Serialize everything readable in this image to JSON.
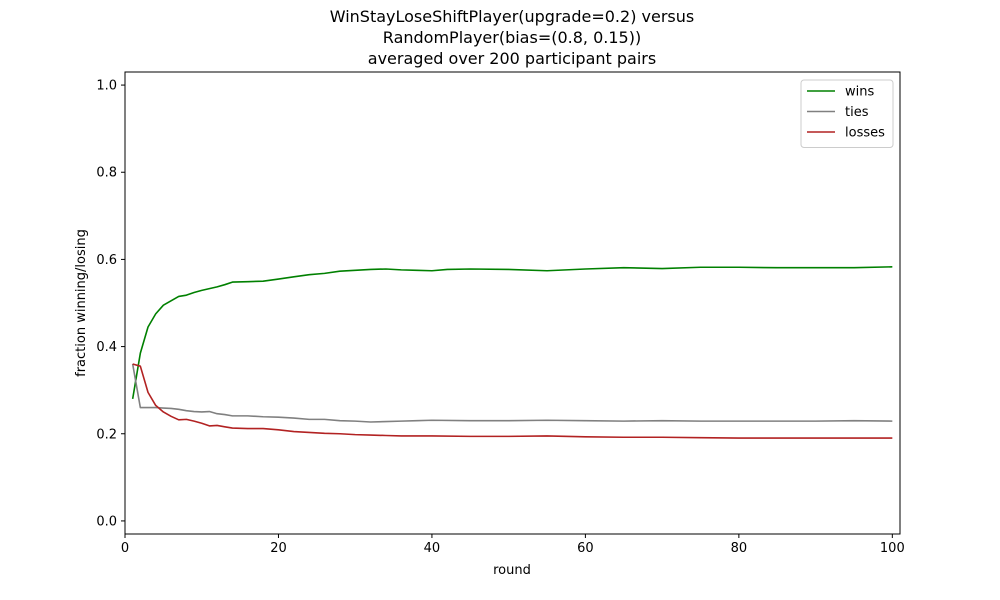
{
  "chart_data": {
    "type": "line",
    "title_lines": [
      "WinStayLoseShiftPlayer(upgrade=0.2) versus",
      "RandomPlayer(bias=(0.8, 0.15))",
      "averaged over 200 participant pairs"
    ],
    "xlabel": "round",
    "ylabel": "fraction winning/losing",
    "xlim": [
      0,
      101
    ],
    "ylim": [
      -0.03,
      1.03
    ],
    "xticks": [
      0,
      20,
      40,
      60,
      80,
      100
    ],
    "yticks": [
      0.0,
      0.2,
      0.4,
      0.6,
      0.8,
      1.0
    ],
    "xtick_labels": [
      "0",
      "20",
      "40",
      "60",
      "80",
      "100"
    ],
    "ytick_labels": [
      "0.0",
      "0.2",
      "0.4",
      "0.6",
      "0.8",
      "1.0"
    ],
    "grid": false,
    "legend_position": "top-right",
    "series": [
      {
        "name": "wins",
        "color": "#008000",
        "points": [
          [
            1,
            0.28
          ],
          [
            2,
            0.385
          ],
          [
            3,
            0.445
          ],
          [
            4,
            0.475
          ],
          [
            5,
            0.495
          ],
          [
            6,
            0.505
          ],
          [
            7,
            0.515
          ],
          [
            8,
            0.518
          ],
          [
            9,
            0.524
          ],
          [
            10,
            0.529
          ],
          [
            12,
            0.537
          ],
          [
            13,
            0.542
          ],
          [
            14,
            0.548
          ],
          [
            16,
            0.549
          ],
          [
            18,
            0.55
          ],
          [
            20,
            0.555
          ],
          [
            22,
            0.56
          ],
          [
            24,
            0.565
          ],
          [
            26,
            0.568
          ],
          [
            28,
            0.573
          ],
          [
            30,
            0.575
          ],
          [
            32,
            0.577
          ],
          [
            34,
            0.578
          ],
          [
            36,
            0.576
          ],
          [
            38,
            0.575
          ],
          [
            40,
            0.574
          ],
          [
            42,
            0.577
          ],
          [
            45,
            0.578
          ],
          [
            50,
            0.577
          ],
          [
            55,
            0.574
          ],
          [
            60,
            0.578
          ],
          [
            65,
            0.581
          ],
          [
            70,
            0.579
          ],
          [
            75,
            0.582
          ],
          [
            80,
            0.582
          ],
          [
            85,
            0.581
          ],
          [
            90,
            0.581
          ],
          [
            95,
            0.581
          ],
          [
            100,
            0.583
          ]
        ]
      },
      {
        "name": "ties",
        "color": "#808080",
        "points": [
          [
            1,
            0.36
          ],
          [
            2,
            0.26
          ],
          [
            3,
            0.26
          ],
          [
            4,
            0.26
          ],
          [
            5,
            0.259
          ],
          [
            6,
            0.258
          ],
          [
            7,
            0.256
          ],
          [
            8,
            0.253
          ],
          [
            9,
            0.251
          ],
          [
            10,
            0.25
          ],
          [
            11,
            0.251
          ],
          [
            12,
            0.246
          ],
          [
            13,
            0.244
          ],
          [
            14,
            0.241
          ],
          [
            16,
            0.241
          ],
          [
            18,
            0.239
          ],
          [
            20,
            0.238
          ],
          [
            22,
            0.236
          ],
          [
            24,
            0.233
          ],
          [
            26,
            0.233
          ],
          [
            28,
            0.23
          ],
          [
            30,
            0.229
          ],
          [
            32,
            0.227
          ],
          [
            34,
            0.228
          ],
          [
            36,
            0.229
          ],
          [
            38,
            0.23
          ],
          [
            40,
            0.231
          ],
          [
            45,
            0.23
          ],
          [
            50,
            0.23
          ],
          [
            55,
            0.231
          ],
          [
            60,
            0.23
          ],
          [
            65,
            0.229
          ],
          [
            70,
            0.23
          ],
          [
            75,
            0.229
          ],
          [
            80,
            0.229
          ],
          [
            85,
            0.229
          ],
          [
            90,
            0.229
          ],
          [
            95,
            0.23
          ],
          [
            100,
            0.229
          ]
        ]
      },
      {
        "name": "losses",
        "color": "#b22222",
        "points": [
          [
            1,
            0.36
          ],
          [
            2,
            0.355
          ],
          [
            3,
            0.295
          ],
          [
            4,
            0.265
          ],
          [
            5,
            0.25
          ],
          [
            6,
            0.24
          ],
          [
            7,
            0.232
          ],
          [
            8,
            0.233
          ],
          [
            9,
            0.229
          ],
          [
            10,
            0.224
          ],
          [
            11,
            0.218
          ],
          [
            12,
            0.219
          ],
          [
            13,
            0.216
          ],
          [
            14,
            0.213
          ],
          [
            16,
            0.212
          ],
          [
            18,
            0.212
          ],
          [
            20,
            0.209
          ],
          [
            22,
            0.205
          ],
          [
            24,
            0.203
          ],
          [
            26,
            0.201
          ],
          [
            28,
            0.2
          ],
          [
            30,
            0.198
          ],
          [
            32,
            0.197
          ],
          [
            34,
            0.196
          ],
          [
            36,
            0.195
          ],
          [
            38,
            0.195
          ],
          [
            40,
            0.195
          ],
          [
            45,
            0.194
          ],
          [
            50,
            0.194
          ],
          [
            55,
            0.195
          ],
          [
            60,
            0.193
          ],
          [
            65,
            0.192
          ],
          [
            70,
            0.192
          ],
          [
            75,
            0.191
          ],
          [
            80,
            0.19
          ],
          [
            85,
            0.19
          ],
          [
            90,
            0.19
          ],
          [
            95,
            0.19
          ],
          [
            100,
            0.19
          ]
        ]
      }
    ]
  }
}
